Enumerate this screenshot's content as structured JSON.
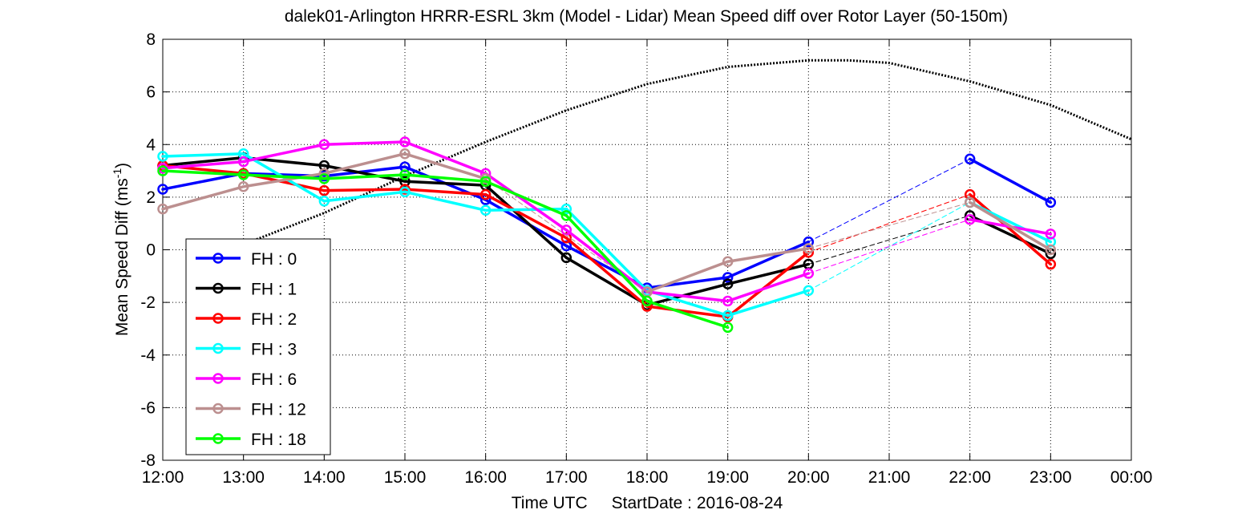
{
  "chart_data": {
    "type": "line",
    "title": "dalek01-Arlington HRRR-ESRL 3km (Model - Lidar) Mean Speed diff over Rotor Layer (50-150m)",
    "ylabel_main": "Mean Speed Diff (ms",
    "ylabel_sup": "-1",
    "ylabel_close": ")",
    "xlabel": "Time UTC",
    "xlabel_extra": "StartDate : 2016-08-24",
    "xlim": [
      "12:00",
      "00:00"
    ],
    "ylim": [
      -8,
      8
    ],
    "yticks": [
      -8,
      -6,
      -4,
      -2,
      0,
      2,
      4,
      6,
      8
    ],
    "xtick_labels": [
      "12:00",
      "13:00",
      "14:00",
      "15:00",
      "16:00",
      "17:00",
      "18:00",
      "19:00",
      "20:00",
      "21:00",
      "22:00",
      "23:00",
      "00:00"
    ],
    "grid": "dotted",
    "legend_position": "lower-left",
    "x_hours": [
      12,
      13,
      14,
      15,
      16,
      17,
      18,
      19,
      20,
      22,
      23
    ],
    "series": [
      {
        "name": "FH : 0",
        "color": "#0000ff",
        "values": [
          2.3,
          2.9,
          2.8,
          3.15,
          1.9,
          0.15,
          -1.45,
          -1.05,
          0.3,
          3.45,
          1.8
        ]
      },
      {
        "name": "FH : 1",
        "color": "#000000",
        "values": [
          3.2,
          3.5,
          3.2,
          2.6,
          2.45,
          -0.3,
          -2.1,
          -1.3,
          -0.55,
          1.3,
          -0.15
        ]
      },
      {
        "name": "FH : 2",
        "color": "#ff0000",
        "values": [
          3.2,
          2.9,
          2.25,
          2.3,
          2.1,
          0.45,
          -2.15,
          -2.55,
          -0.1,
          2.1,
          -0.55
        ]
      },
      {
        "name": "FH : 3",
        "color": "#00ffff",
        "values": [
          3.55,
          3.65,
          1.85,
          2.2,
          1.5,
          1.55,
          -1.55,
          -2.5,
          -1.55,
          1.8,
          0.3
        ]
      },
      {
        "name": "FH : 6",
        "color": "#ff00ff",
        "values": [
          3.1,
          3.35,
          4.0,
          4.1,
          2.9,
          0.75,
          -1.6,
          -1.95,
          -0.9,
          1.15,
          0.6
        ]
      },
      {
        "name": "FH : 12",
        "color": "#bc8f8f",
        "values": [
          1.55,
          2.4,
          2.9,
          3.65,
          2.7,
          null,
          -1.6,
          -0.45,
          0.05,
          1.8,
          0.0
        ]
      },
      {
        "name": "FH : 18",
        "color": "#00ff00",
        "values": [
          3.0,
          2.85,
          2.7,
          2.85,
          2.6,
          1.3,
          -1.95,
          -2.95,
          null,
          null,
          null
        ]
      }
    ],
    "reference_curve": {
      "style": "dotted",
      "color": "#000000",
      "x_hours": [
        12.8,
        13.0,
        14.0,
        15.0,
        16.0,
        17.0,
        18.0,
        19.0,
        20.0,
        20.5,
        21.0,
        22.0,
        23.0,
        24.0
      ],
      "values": [
        -0.1,
        0.2,
        1.4,
        2.8,
        4.1,
        5.3,
        6.3,
        6.95,
        7.2,
        7.2,
        7.1,
        6.4,
        5.5,
        4.2
      ]
    }
  }
}
